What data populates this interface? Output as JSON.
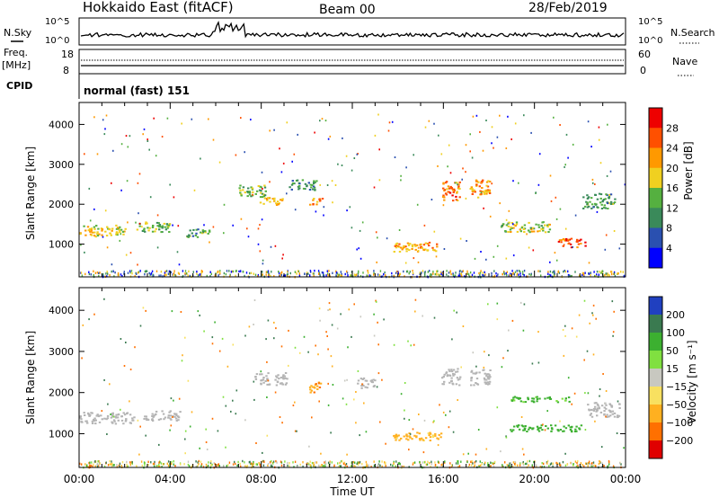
{
  "header": {
    "title": "Hokkaido East (fitACF)",
    "beam": "Beam 00",
    "date": "28/Feb/2019"
  },
  "summary": {
    "nsky_label": "N.Sky",
    "nsky_ticks": [
      "10^5",
      "10^0"
    ],
    "nsearch_label": "N.Search",
    "nsearch_ticks": [
      "10^5",
      "10^0"
    ],
    "freq_label": "Freq.",
    "freq_unit": "[MHz]",
    "freq_ticks": [
      "18",
      "8"
    ],
    "nave_label": "Nave",
    "nave_ticks": [
      "60",
      "0"
    ],
    "cpid_label": "CPID",
    "cpid_value": "normal (fast) 151"
  },
  "colors": {
    "power_scale": [
      "#0000ff",
      "#2a50b0",
      "#3a8a5a",
      "#55b040",
      "#f0d020",
      "#ff9900",
      "#ff5000",
      "#ee0000"
    ],
    "velocity_scale": [
      "#2040c0",
      "#3a7a50",
      "#3cb030",
      "#80e040",
      "#c8c8c0",
      "#f8e060",
      "#ffb020",
      "#ff7000",
      "#e00000"
    ],
    "ground_scatter": "#b4b4b4"
  },
  "chart_data": [
    {
      "type": "heatmap",
      "name": "power",
      "ylabel": "Slant Range [km]",
      "xlabel": "Time UT",
      "yticks": [
        "1000",
        "2000",
        "3000",
        "4000"
      ],
      "xticks": [
        "00:00",
        "04:00",
        "08:00",
        "12:00",
        "16:00",
        "20:00",
        "00:00"
      ],
      "xlim": [
        0,
        24
      ],
      "ylim": [
        180,
        4550
      ],
      "colorbar": {
        "label": "Power [dB]",
        "ticks": [
          "4",
          "8",
          "12",
          "16",
          "20",
          "24",
          "28"
        ]
      },
      "patches": [
        {
          "t": 1.0,
          "r": 1350,
          "dt": 2.0,
          "dr": 280,
          "v": 18
        },
        {
          "t": 3.2,
          "r": 1450,
          "dt": 1.5,
          "dr": 260,
          "v": 14
        },
        {
          "t": 5.2,
          "r": 1300,
          "dt": 1.0,
          "dr": 220,
          "v": 12
        },
        {
          "t": 7.6,
          "r": 2350,
          "dt": 1.2,
          "dr": 300,
          "v": 15
        },
        {
          "t": 8.4,
          "r": 2100,
          "dt": 1.0,
          "dr": 200,
          "v": 20
        },
        {
          "t": 9.8,
          "r": 2500,
          "dt": 1.2,
          "dr": 260,
          "v": 10
        },
        {
          "t": 10.4,
          "r": 2100,
          "dt": 0.6,
          "dr": 180,
          "v": 22
        },
        {
          "t": 14.8,
          "r": 950,
          "dt": 2.0,
          "dr": 240,
          "v": 21
        },
        {
          "t": 16.3,
          "r": 2350,
          "dt": 0.8,
          "dr": 480,
          "v": 24
        },
        {
          "t": 17.6,
          "r": 2400,
          "dt": 0.9,
          "dr": 480,
          "v": 23
        },
        {
          "t": 19.6,
          "r": 1450,
          "dt": 2.2,
          "dr": 260,
          "v": 16
        },
        {
          "t": 21.6,
          "r": 1050,
          "dt": 1.2,
          "dr": 220,
          "v": 26
        },
        {
          "t": 22.8,
          "r": 2100,
          "dt": 1.4,
          "dr": 380,
          "v": 12
        }
      ]
    },
    {
      "type": "heatmap",
      "name": "velocity",
      "ylabel": "Slant Range [km]",
      "xlabel": "Time UT",
      "yticks": [
        "1000",
        "2000",
        "3000",
        "4000"
      ],
      "xticks": [
        "00:00",
        "04:00",
        "08:00",
        "12:00",
        "16:00",
        "20:00",
        "00:00"
      ],
      "xlim": [
        0,
        24
      ],
      "ylim": [
        180,
        4550
      ],
      "colorbar": {
        "label": "Velocity [m s⁻¹]",
        "ticks": [
          "200",
          "100",
          "50",
          "15",
          "−15",
          "−50",
          "−100",
          "−200"
        ]
      },
      "patches": [
        {
          "t": 1.2,
          "r": 1400,
          "dt": 2.4,
          "dr": 280,
          "v": 0,
          "g": true
        },
        {
          "t": 3.6,
          "r": 1450,
          "dt": 1.6,
          "dr": 240,
          "v": 0,
          "g": true
        },
        {
          "t": 8.4,
          "r": 2350,
          "dt": 1.4,
          "dr": 300,
          "v": 0,
          "g": true
        },
        {
          "t": 10.4,
          "r": 2150,
          "dt": 0.6,
          "dr": 260,
          "v": -90
        },
        {
          "t": 12.6,
          "r": 2250,
          "dt": 0.8,
          "dr": 260,
          "v": 0,
          "g": true
        },
        {
          "t": 14.8,
          "r": 950,
          "dt": 2.2,
          "dr": 200,
          "v": -60
        },
        {
          "t": 16.3,
          "r": 2400,
          "dt": 0.8,
          "dr": 400,
          "v": 0,
          "g": true
        },
        {
          "t": 17.6,
          "r": 2400,
          "dt": 0.9,
          "dr": 400,
          "v": 0,
          "g": true
        },
        {
          "t": 20.2,
          "r": 1850,
          "dt": 2.6,
          "dr": 140,
          "v": 60
        },
        {
          "t": 20.5,
          "r": 1150,
          "dt": 3.2,
          "dr": 160,
          "v": 70
        },
        {
          "t": 23.0,
          "r": 1600,
          "dt": 1.4,
          "dr": 360,
          "v": 0,
          "g": true
        }
      ]
    }
  ]
}
